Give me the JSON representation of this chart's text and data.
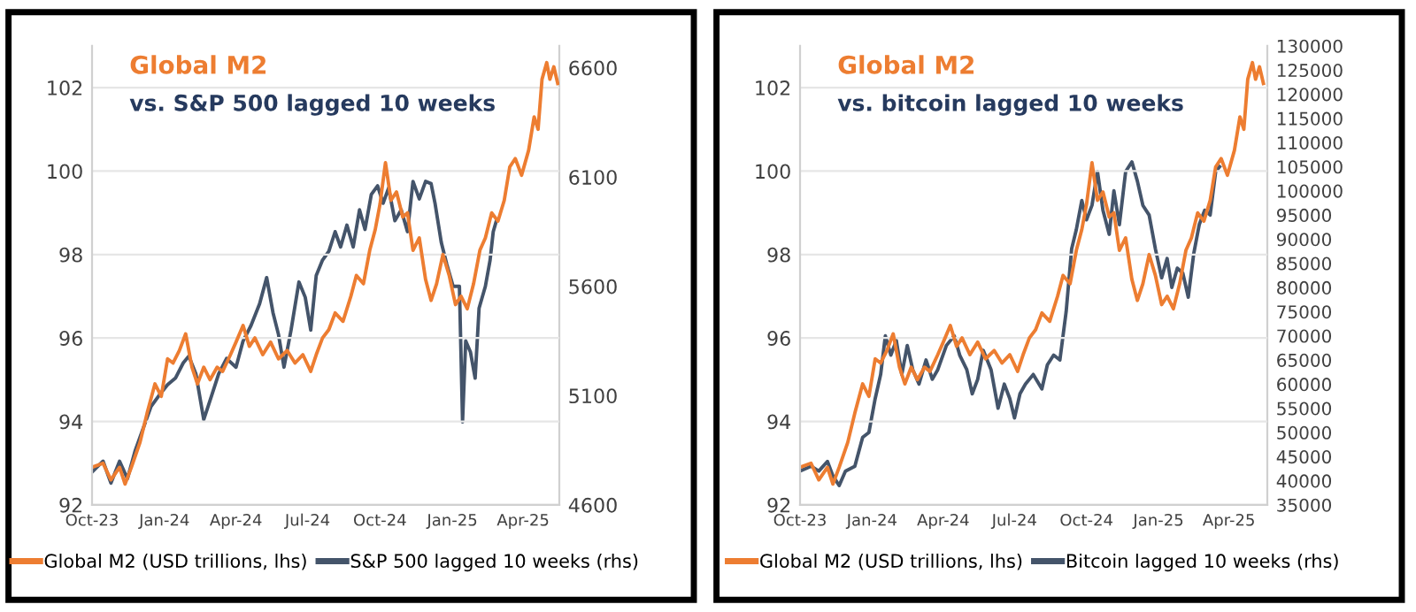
{
  "chart_data": [
    {
      "type": "line",
      "title": "Global M2",
      "subtitle": "vs. S&P 500 lagged 10 weeks",
      "grid": "y",
      "legend": "bottom",
      "marker": "none",
      "line_style": "solid",
      "xlim": [
        "2023-10-01",
        "2025-05-17"
      ],
      "xticks": [
        {
          "value": "2023-10-01",
          "label": "Oct-23"
        },
        {
          "value": "2024-01-01",
          "label": "Jan-24"
        },
        {
          "value": "2024-04-01",
          "label": "Apr-24"
        },
        {
          "value": "2024-07-01",
          "label": "Jul-24"
        },
        {
          "value": "2024-10-01",
          "label": "Oct-24"
        },
        {
          "value": "2025-01-01",
          "label": "Jan-25"
        },
        {
          "value": "2025-04-01",
          "label": "Apr-25"
        }
      ],
      "ylim": [
        92,
        103
      ],
      "yticks": [
        92,
        94,
        96,
        98,
        100,
        102
      ],
      "y2lim": [
        4600,
        6700
      ],
      "y2ticks": [
        4600,
        5100,
        5600,
        6100,
        6600
      ],
      "series": [
        {
          "name": "Global M2 (USD trillions, lhs)",
          "color": "#ed7d31",
          "x": [
            "2023-10-01",
            "2023-10-15",
            "2023-10-25",
            "2023-11-05",
            "2023-11-12",
            "2023-11-20",
            "2023-12-01",
            "2023-12-10",
            "2023-12-20",
            "2023-12-28",
            "2024-01-05",
            "2024-01-12",
            "2024-01-20",
            "2024-01-28",
            "2024-02-05",
            "2024-02-12",
            "2024-02-20",
            "2024-02-28",
            "2024-03-08",
            "2024-03-15",
            "2024-03-25",
            "2024-04-01",
            "2024-04-10",
            "2024-04-18",
            "2024-04-25",
            "2024-05-05",
            "2024-05-15",
            "2024-05-25",
            "2024-06-05",
            "2024-06-15",
            "2024-06-25",
            "2024-07-05",
            "2024-07-12",
            "2024-07-20",
            "2024-07-28",
            "2024-08-05",
            "2024-08-15",
            "2024-08-25",
            "2024-09-01",
            "2024-09-10",
            "2024-09-18",
            "2024-09-25",
            "2024-10-01",
            "2024-10-08",
            "2024-10-15",
            "2024-10-22",
            "2024-10-30",
            "2024-11-05",
            "2024-11-12",
            "2024-11-20",
            "2024-11-28",
            "2024-12-05",
            "2024-12-12",
            "2024-12-20",
            "2024-12-28",
            "2025-01-05",
            "2025-01-12",
            "2025-01-20",
            "2025-01-28",
            "2025-02-05",
            "2025-02-12",
            "2025-02-20",
            "2025-02-28",
            "2025-03-08",
            "2025-03-15",
            "2025-03-22",
            "2025-03-30",
            "2025-04-08",
            "2025-04-15",
            "2025-04-20",
            "2025-04-25",
            "2025-05-01",
            "2025-05-05",
            "2025-05-10",
            "2025-05-15"
          ],
          "values": [
            92.9,
            93.0,
            92.6,
            92.9,
            92.5,
            92.9,
            93.5,
            94.2,
            94.9,
            94.6,
            95.5,
            95.4,
            95.7,
            96.1,
            95.3,
            94.9,
            95.3,
            95.0,
            95.3,
            95.2,
            95.6,
            95.9,
            96.3,
            95.8,
            96.0,
            95.6,
            95.9,
            95.5,
            95.7,
            95.4,
            95.6,
            95.2,
            95.6,
            96.0,
            96.2,
            96.6,
            96.4,
            97.0,
            97.5,
            97.3,
            98.1,
            98.6,
            99.2,
            100.2,
            99.3,
            99.5,
            98.9,
            99.0,
            98.1,
            98.4,
            97.4,
            96.9,
            97.3,
            98.0,
            97.5,
            96.8,
            97.0,
            96.7,
            97.3,
            98.1,
            98.4,
            99.0,
            98.8,
            99.3,
            100.1,
            100.3,
            99.9,
            100.5,
            101.3,
            101.0,
            102.2,
            102.6,
            102.2,
            102.5,
            102.1
          ]
        },
        {
          "name": "S&P 500 lagged 10 weeks (rhs)",
          "color": "#44546a",
          "axis": "y2",
          "x": [
            "2023-10-01",
            "2023-10-15",
            "2023-10-25",
            "2023-11-05",
            "2023-11-15",
            "2023-11-25",
            "2023-12-05",
            "2023-12-15",
            "2023-12-25",
            "2024-01-05",
            "2024-01-15",
            "2024-01-25",
            "2024-02-01",
            "2024-02-10",
            "2024-02-20",
            "2024-03-01",
            "2024-03-10",
            "2024-03-20",
            "2024-04-01",
            "2024-04-10",
            "2024-04-20",
            "2024-05-01",
            "2024-05-10",
            "2024-05-18",
            "2024-05-25",
            "2024-06-01",
            "2024-06-10",
            "2024-06-20",
            "2024-06-28",
            "2024-07-05",
            "2024-07-12",
            "2024-07-20",
            "2024-07-28",
            "2024-08-05",
            "2024-08-12",
            "2024-08-20",
            "2024-08-28",
            "2024-09-05",
            "2024-09-12",
            "2024-09-20",
            "2024-09-28",
            "2024-10-05",
            "2024-10-12",
            "2024-10-20",
            "2024-10-28",
            "2024-11-05",
            "2024-11-12",
            "2024-11-20",
            "2024-11-28",
            "2024-12-05",
            "2024-12-10",
            "2024-12-18",
            "2024-12-25",
            "2025-01-02",
            "2025-01-10",
            "2025-01-14",
            "2025-01-18",
            "2025-01-24",
            "2025-01-30",
            "2025-02-04",
            "2025-02-12",
            "2025-02-18",
            "2025-02-22",
            "2025-02-26"
          ],
          "values": [
            4750,
            4800,
            4700,
            4800,
            4720,
            4850,
            4950,
            5050,
            5100,
            5150,
            5180,
            5250,
            5280,
            5200,
            4990,
            5100,
            5200,
            5270,
            5230,
            5350,
            5420,
            5520,
            5640,
            5480,
            5380,
            5230,
            5400,
            5620,
            5550,
            5400,
            5650,
            5720,
            5760,
            5850,
            5780,
            5880,
            5780,
            5950,
            5860,
            6020,
            6060,
            5980,
            6050,
            5900,
            5950,
            5850,
            6080,
            6000,
            6080,
            6070,
            5980,
            5800,
            5700,
            5600,
            5600,
            4980,
            5350,
            5300,
            5180,
            5500,
            5600,
            5720,
            5850,
            5900
          ]
        }
      ]
    },
    {
      "type": "line",
      "title": "Global M2",
      "subtitle": "vs. bitcoin lagged 10 weeks",
      "grid": "y",
      "legend": "bottom",
      "marker": "none",
      "line_style": "solid",
      "xlim": [
        "2023-10-01",
        "2025-05-20"
      ],
      "xticks": [
        {
          "value": "2023-10-01",
          "label": "Oct-23"
        },
        {
          "value": "2024-01-01",
          "label": "Jan-24"
        },
        {
          "value": "2024-04-01",
          "label": "Apr-24"
        },
        {
          "value": "2024-07-01",
          "label": "Jul-24"
        },
        {
          "value": "2024-10-01",
          "label": "Oct-24"
        },
        {
          "value": "2025-01-01",
          "label": "Jan-25"
        },
        {
          "value": "2025-04-01",
          "label": "Apr-25"
        }
      ],
      "ylim": [
        92,
        103
      ],
      "yticks": [
        92,
        94,
        96,
        98,
        100,
        102
      ],
      "y2lim": [
        35000,
        130000
      ],
      "y2ticks": [
        35000,
        40000,
        45000,
        50000,
        55000,
        60000,
        65000,
        70000,
        75000,
        80000,
        85000,
        90000,
        95000,
        100000,
        105000,
        110000,
        115000,
        120000,
        125000,
        130000
      ],
      "series": [
        {
          "name": "Global M2 (USD trillions, lhs)",
          "color": "#ed7d31",
          "x": [
            "2023-10-01",
            "2023-10-15",
            "2023-10-25",
            "2023-11-05",
            "2023-11-12",
            "2023-11-20",
            "2023-12-01",
            "2023-12-10",
            "2023-12-20",
            "2023-12-28",
            "2024-01-05",
            "2024-01-12",
            "2024-01-20",
            "2024-01-28",
            "2024-02-05",
            "2024-02-12",
            "2024-02-20",
            "2024-02-28",
            "2024-03-08",
            "2024-03-15",
            "2024-03-25",
            "2024-04-01",
            "2024-04-10",
            "2024-04-18",
            "2024-04-25",
            "2024-05-05",
            "2024-05-15",
            "2024-05-25",
            "2024-06-05",
            "2024-06-15",
            "2024-06-25",
            "2024-07-05",
            "2024-07-12",
            "2024-07-20",
            "2024-07-28",
            "2024-08-05",
            "2024-08-15",
            "2024-08-25",
            "2024-09-01",
            "2024-09-10",
            "2024-09-18",
            "2024-09-25",
            "2024-10-01",
            "2024-10-08",
            "2024-10-15",
            "2024-10-22",
            "2024-10-30",
            "2024-11-05",
            "2024-11-12",
            "2024-11-20",
            "2024-11-28",
            "2024-12-05",
            "2024-12-12",
            "2024-12-20",
            "2024-12-28",
            "2025-01-05",
            "2025-01-12",
            "2025-01-20",
            "2025-01-28",
            "2025-02-05",
            "2025-02-12",
            "2025-02-20",
            "2025-02-28",
            "2025-03-08",
            "2025-03-15",
            "2025-03-22",
            "2025-03-30",
            "2025-04-08",
            "2025-04-15",
            "2025-04-20",
            "2025-04-25",
            "2025-05-01",
            "2025-05-05",
            "2025-05-10",
            "2025-05-15"
          ],
          "values": [
            92.9,
            93.0,
            92.6,
            92.9,
            92.5,
            92.9,
            93.5,
            94.2,
            94.9,
            94.6,
            95.5,
            95.4,
            95.7,
            96.1,
            95.3,
            94.9,
            95.3,
            95.0,
            95.3,
            95.2,
            95.6,
            95.9,
            96.3,
            95.8,
            96.0,
            95.6,
            95.9,
            95.5,
            95.7,
            95.4,
            95.6,
            95.2,
            95.6,
            96.0,
            96.2,
            96.6,
            96.4,
            97.0,
            97.5,
            97.3,
            98.1,
            98.6,
            99.2,
            100.2,
            99.3,
            99.5,
            98.9,
            99.0,
            98.1,
            98.4,
            97.4,
            96.9,
            97.3,
            98.0,
            97.5,
            96.8,
            97.0,
            96.7,
            97.3,
            98.1,
            98.4,
            99.0,
            98.8,
            99.3,
            100.1,
            100.3,
            99.9,
            100.5,
            101.3,
            101.0,
            102.2,
            102.6,
            102.2,
            102.5,
            102.1
          ]
        },
        {
          "name": "Bitcoin lagged 10 weeks (rhs)",
          "color": "#44546a",
          "axis": "y2",
          "x": [
            "2023-10-01",
            "2023-10-15",
            "2023-10-25",
            "2023-11-05",
            "2023-11-12",
            "2023-11-20",
            "2023-11-28",
            "2023-12-10",
            "2023-12-20",
            "2023-12-28",
            "2024-01-05",
            "2024-01-12",
            "2024-01-18",
            "2024-01-25",
            "2024-02-01",
            "2024-02-08",
            "2024-02-15",
            "2024-02-22",
            "2024-03-01",
            "2024-03-10",
            "2024-03-18",
            "2024-03-25",
            "2024-04-05",
            "2024-04-15",
            "2024-04-22",
            "2024-05-01",
            "2024-05-08",
            "2024-05-15",
            "2024-05-22",
            "2024-06-01",
            "2024-06-10",
            "2024-06-18",
            "2024-06-25",
            "2024-07-01",
            "2024-07-08",
            "2024-07-15",
            "2024-07-25",
            "2024-08-05",
            "2024-08-12",
            "2024-08-20",
            "2024-08-28",
            "2024-09-05",
            "2024-09-12",
            "2024-09-18",
            "2024-09-25",
            "2024-10-01",
            "2024-10-08",
            "2024-10-15",
            "2024-10-22",
            "2024-10-30",
            "2024-11-05",
            "2024-11-12",
            "2024-11-20",
            "2024-11-28",
            "2024-12-05",
            "2024-12-12",
            "2024-12-20",
            "2024-12-28",
            "2025-01-05",
            "2025-01-12",
            "2025-01-18",
            "2025-01-25",
            "2025-02-01",
            "2025-02-08",
            "2025-02-15",
            "2025-02-22",
            "2025-03-01",
            "2025-03-08",
            "2025-03-15",
            "2025-03-20"
          ],
          "values": [
            42000,
            43000,
            42000,
            44000,
            41000,
            39000,
            42000,
            43000,
            49000,
            50000,
            57000,
            62000,
            70000,
            66000,
            69000,
            62000,
            68000,
            63000,
            60000,
            65000,
            61000,
            63000,
            68000,
            70000,
            66000,
            63000,
            58000,
            61000,
            67000,
            63000,
            55000,
            60000,
            57000,
            53000,
            58000,
            60000,
            62000,
            59000,
            64000,
            66000,
            65000,
            75000,
            88000,
            92000,
            98000,
            94000,
            97000,
            104000,
            96000,
            91000,
            100000,
            93000,
            104000,
            106000,
            102000,
            97000,
            95000,
            88000,
            82000,
            86000,
            80000,
            84000,
            83000,
            78000,
            87000,
            93000,
            96000,
            95000,
            104000,
            105000
          ]
        }
      ]
    }
  ]
}
